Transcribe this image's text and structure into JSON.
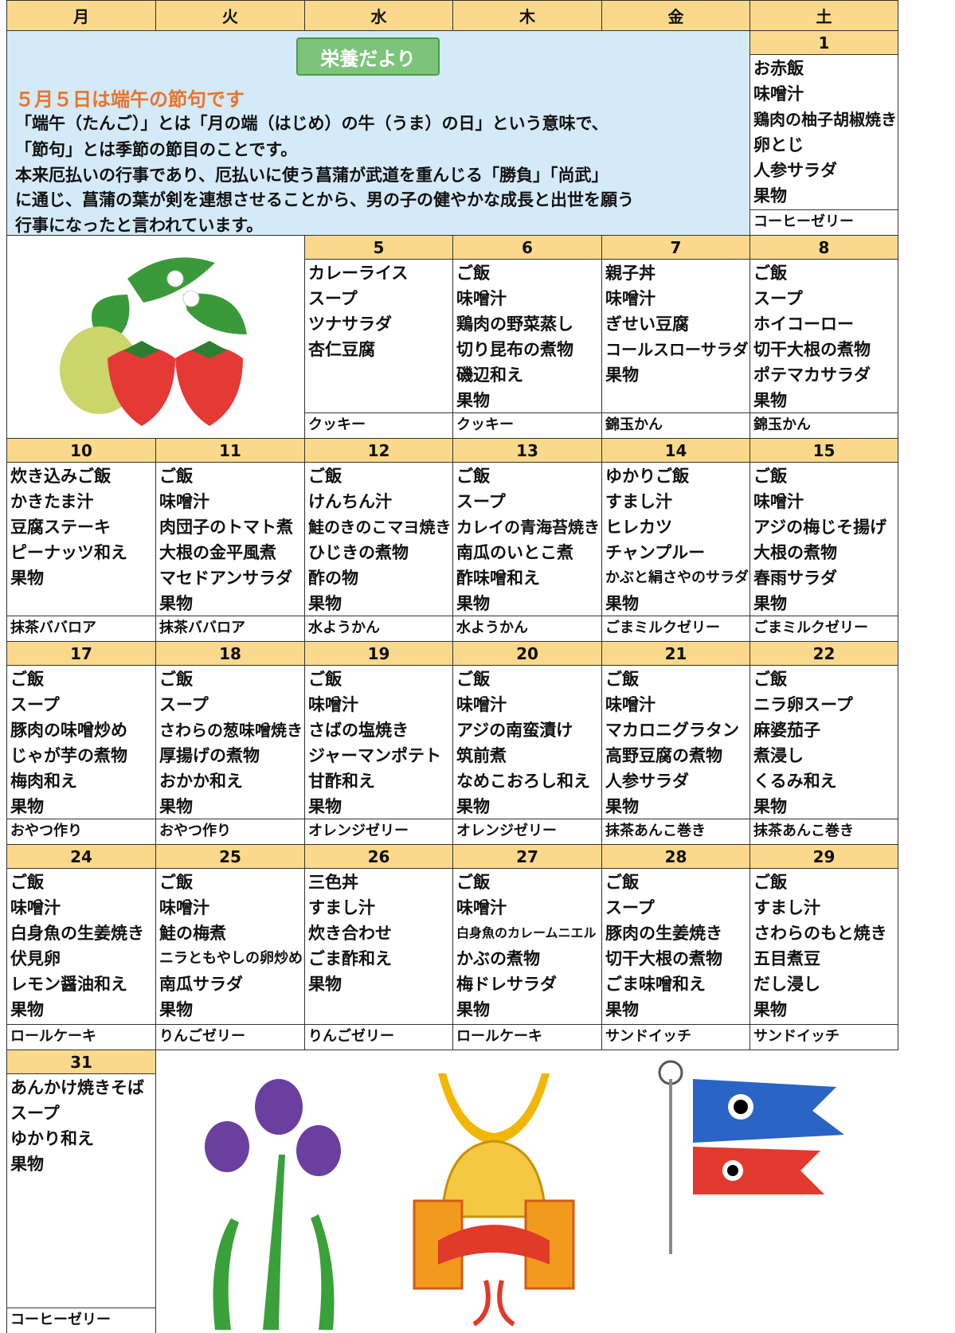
{
  "header": {
    "weekdays": [
      "月",
      "火",
      "水",
      "木",
      "金",
      "土"
    ]
  },
  "notice": {
    "badge": "栄養だより",
    "title": "５月５日は端午の節句です",
    "lines": [
      "「端午（たんご）」とは「月の端（はじめ）の牛（うま）の日」という意味で、",
      "「節句」とは季節の節目のことです。",
      "本来厄払いの行事であり、厄払いに使う菖蒲が武道を重んじる「勝負」「尚武」",
      "に通じ、菖蒲の葉が剣を連想させることから、男の子の健やかな成長と出世を願う",
      "行事になったと言われています。"
    ]
  },
  "days": [
    {
      "date": "1",
      "menu": [
        "お赤飯",
        "味噌汁",
        "鶏肉の柚子胡椒焼き",
        "卵とじ",
        "人参サラダ",
        "果物"
      ],
      "snack": "コーヒーゼリー"
    },
    {
      "date": "5",
      "menu": [
        "カレーライス",
        "スープ",
        "ツナサラダ",
        "杏仁豆腐"
      ],
      "snack": "クッキー"
    },
    {
      "date": "6",
      "menu": [
        "ご飯",
        "味噌汁",
        "鶏肉の野菜蒸し",
        "切り昆布の煮物",
        "磯辺和え",
        "果物"
      ],
      "snack": "クッキー"
    },
    {
      "date": "7",
      "menu": [
        "親子丼",
        "味噌汁",
        "ぎせい豆腐",
        "コールスローサラダ",
        "果物"
      ],
      "snack": "錦玉かん"
    },
    {
      "date": "8",
      "menu": [
        "ご飯",
        "スープ",
        "ホイコーロー",
        "切干大根の煮物",
        "ポテマカサラダ",
        "果物"
      ],
      "snack": "錦玉かん"
    },
    {
      "date": "10",
      "menu": [
        "炊き込みご飯",
        "かきたま汁",
        "豆腐ステーキ",
        "ピーナッツ和え",
        "果物"
      ],
      "snack": "抹茶ババロア"
    },
    {
      "date": "11",
      "menu": [
        "ご飯",
        "味噌汁",
        "肉団子のトマト煮",
        "大根の金平風煮",
        "マセドアンサラダ",
        "果物"
      ],
      "snack": "抹茶ババロア"
    },
    {
      "date": "12",
      "menu": [
        "ご飯",
        "けんちん汁",
        "鮭のきのこマヨ焼き",
        "ひじきの煮物",
        "酢の物",
        "果物"
      ],
      "snack": "水ようかん"
    },
    {
      "date": "13",
      "menu": [
        "ご飯",
        "スープ",
        "カレイの青海苔焼き",
        "南瓜のいとこ煮",
        "酢味噌和え",
        "果物"
      ],
      "snack": "水ようかん"
    },
    {
      "date": "14",
      "menu": [
        "ゆかりご飯",
        "すまし汁",
        "ヒレカツ",
        "チャンプルー",
        "かぶと絹さやのサラダ",
        "果物"
      ],
      "snack": "ごまミルクゼリー"
    },
    {
      "date": "15",
      "menu": [
        "ご飯",
        "味噌汁",
        "アジの梅じそ揚げ",
        "大根の煮物",
        "春雨サラダ",
        "果物"
      ],
      "snack": "ごまミルクゼリー"
    },
    {
      "date": "17",
      "menu": [
        "ご飯",
        "スープ",
        "豚肉の味噌炒め",
        "じゃが芋の煮物",
        "梅肉和え",
        "果物"
      ],
      "snack": "おやつ作り"
    },
    {
      "date": "18",
      "menu": [
        "ご飯",
        "スープ",
        "さわらの葱味噌焼き",
        "厚揚げの煮物",
        "おかか和え",
        "果物"
      ],
      "snack": "おやつ作り"
    },
    {
      "date": "19",
      "menu": [
        "ご飯",
        "味噌汁",
        "さばの塩焼き",
        "ジャーマンポテト",
        "甘酢和え",
        "果物"
      ],
      "snack": "オレンジゼリー"
    },
    {
      "date": "20",
      "menu": [
        "ご飯",
        "味噌汁",
        "アジの南蛮漬け",
        "筑前煮",
        "なめこおろし和え",
        "果物"
      ],
      "snack": "オレンジゼリー"
    },
    {
      "date": "21",
      "menu": [
        "ご飯",
        "味噌汁",
        "マカロニグラタン",
        "高野豆腐の煮物",
        "人参サラダ",
        "果物"
      ],
      "snack": "抹茶あんこ巻き"
    },
    {
      "date": "22",
      "menu": [
        "ご飯",
        "ニラ卵スープ",
        "麻婆茄子",
        "煮浸し",
        "くるみ和え",
        "果物"
      ],
      "snack": "抹茶あんこ巻き"
    },
    {
      "date": "24",
      "menu": [
        "ご飯",
        "味噌汁",
        "白身魚の生姜焼き",
        "伏見卵",
        "レモン醤油和え",
        "果物"
      ],
      "snack": "ロールケーキ"
    },
    {
      "date": "25",
      "menu": [
        "ご飯",
        "味噌汁",
        "鮭の梅煮",
        "ニラともやしの卵炒め",
        "南瓜サラダ",
        "果物"
      ],
      "snack": "りんごゼリー"
    },
    {
      "date": "26",
      "menu": [
        "三色丼",
        "すまし汁",
        "炊き合わせ",
        "ごま酢和え",
        "果物"
      ],
      "snack": "りんごゼリー"
    },
    {
      "date": "27",
      "menu": [
        "ご飯",
        "味噌汁",
        "白身魚のカレームニエル",
        "かぶの煮物",
        "梅ドレサラダ",
        "果物"
      ],
      "snack": "ロールケーキ"
    },
    {
      "date": "28",
      "menu": [
        "ご飯",
        "スープ",
        "豚肉の生姜焼き",
        "切干大根の煮物",
        "ごま味噌和え",
        "果物"
      ],
      "snack": "サンドイッチ"
    },
    {
      "date": "29",
      "menu": [
        "ご飯",
        "すまし汁",
        "さわらのもと焼き",
        "五目煮豆",
        "だし浸し",
        "果物"
      ],
      "snack": "サンドイッチ"
    },
    {
      "date": "31",
      "menu": [
        "あんかけ焼きそば",
        "スープ",
        "ゆかり和え",
        "果物"
      ],
      "snack": "コーヒーゼリー"
    }
  ]
}
